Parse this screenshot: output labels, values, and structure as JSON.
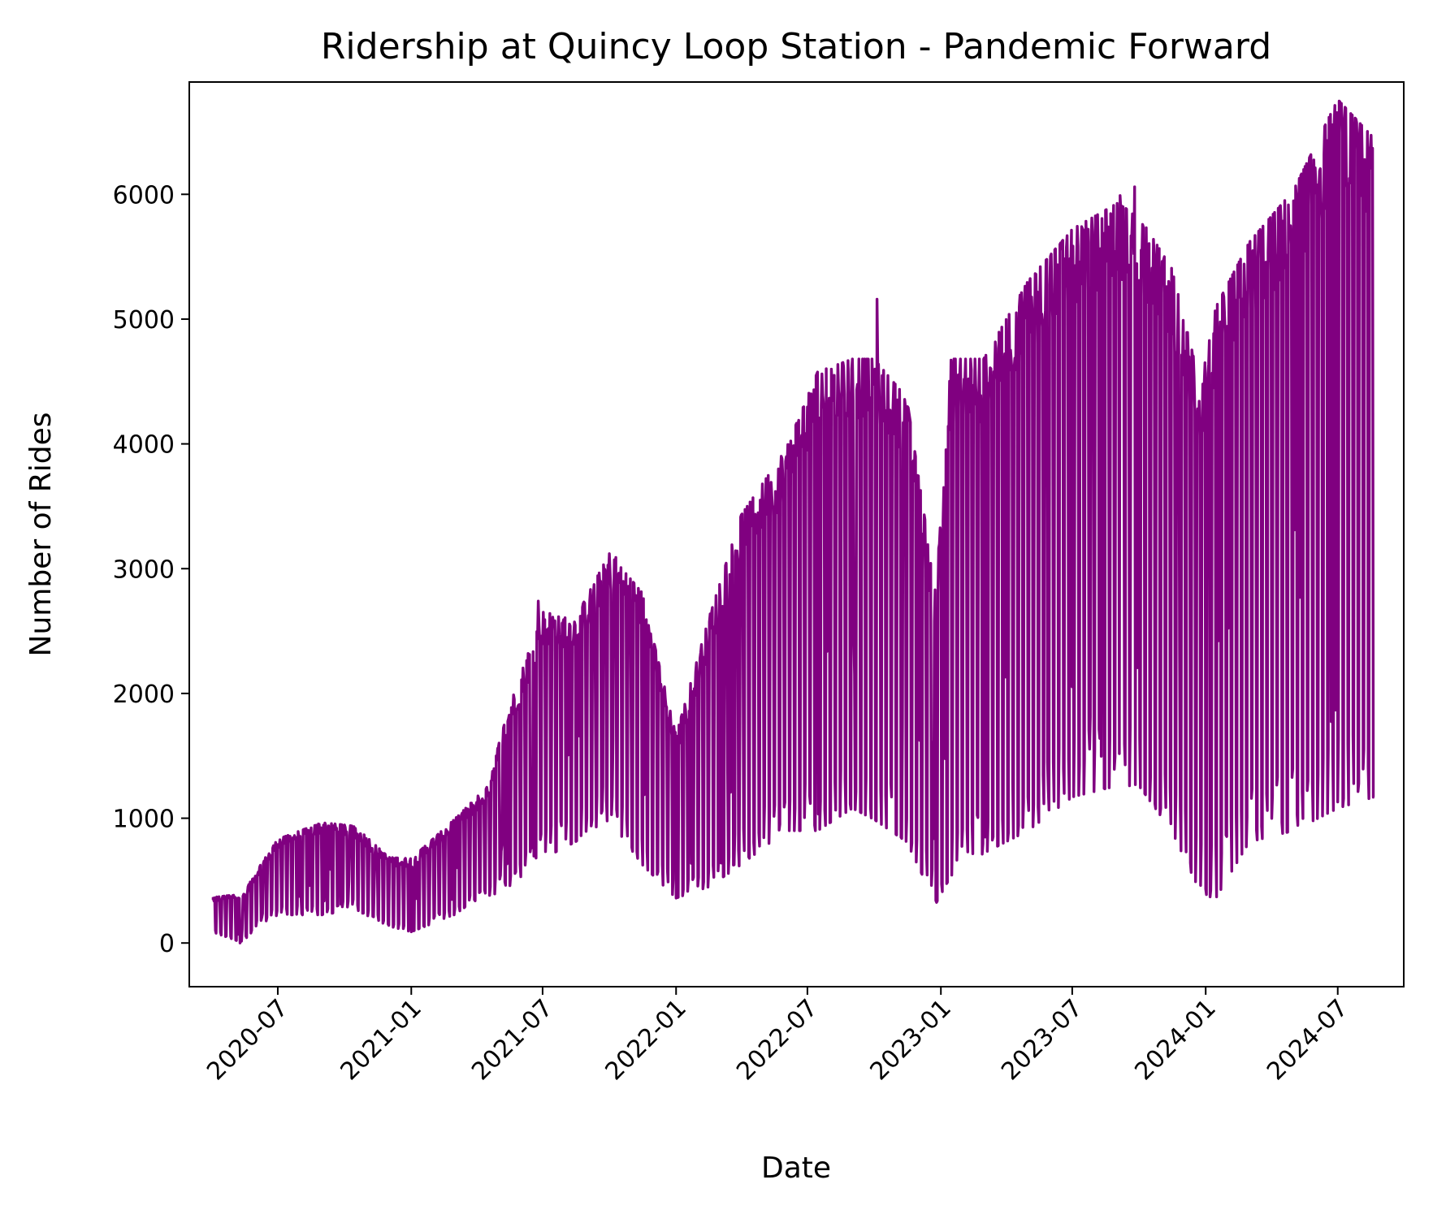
{
  "chart_data": {
    "type": "line",
    "title": "Ridership at Quincy Loop Station - Pandemic Forward",
    "xlabel": "Date",
    "ylabel": "Number of Rides",
    "x_range": [
      "2020-03-01",
      "2024-09-01"
    ],
    "x_domain": [
      "2020-03-01",
      "2024-09-30"
    ],
    "ylim": [
      -350,
      6900
    ],
    "grid": false,
    "legend": "none",
    "line_color": "#800080",
    "x_ticks": [
      {
        "date": "2020-07-01",
        "label": "2020-07"
      },
      {
        "date": "2021-01-01",
        "label": "2021-01"
      },
      {
        "date": "2021-07-01",
        "label": "2021-07"
      },
      {
        "date": "2022-01-01",
        "label": "2022-01"
      },
      {
        "date": "2022-07-01",
        "label": "2022-07"
      },
      {
        "date": "2023-01-01",
        "label": "2023-01"
      },
      {
        "date": "2023-07-01",
        "label": "2023-07"
      },
      {
        "date": "2024-01-01",
        "label": "2024-01"
      },
      {
        "date": "2024-07-01",
        "label": "2024-07"
      }
    ],
    "y_ticks": [
      {
        "value": 0,
        "label": "0"
      },
      {
        "value": 1000,
        "label": "1000"
      },
      {
        "value": 2000,
        "label": "2000"
      },
      {
        "value": 3000,
        "label": "3000"
      },
      {
        "value": 4000,
        "label": "4000"
      },
      {
        "value": 5000,
        "label": "5000"
      },
      {
        "value": 6000,
        "label": "6000"
      }
    ],
    "series": [
      {
        "daily_range_envelope": [
          {
            "date": "2020-04-01",
            "low": 100,
            "high": 350
          },
          {
            "date": "2020-05-15",
            "low": 0,
            "high": 380
          },
          {
            "date": "2020-06-01",
            "low": 150,
            "high": 550
          },
          {
            "date": "2020-07-01",
            "low": 250,
            "high": 800
          },
          {
            "date": "2020-09-01",
            "low": 250,
            "high": 930
          },
          {
            "date": "2020-10-15",
            "low": 300,
            "high": 900
          },
          {
            "date": "2020-12-01",
            "low": 150,
            "high": 660
          },
          {
            "date": "2021-01-01",
            "low": 100,
            "high": 650
          },
          {
            "date": "2021-03-01",
            "low": 250,
            "high": 950
          },
          {
            "date": "2021-04-15",
            "low": 400,
            "high": 1200
          },
          {
            "date": "2021-05-15",
            "low": 500,
            "high": 1800
          },
          {
            "date": "2021-07-01",
            "low": 750,
            "high": 2550
          },
          {
            "date": "2021-08-15",
            "low": 900,
            "high": 2500
          },
          {
            "date": "2021-10-01",
            "low": 1100,
            "high": 3000
          },
          {
            "date": "2021-11-15",
            "low": 700,
            "high": 2700
          },
          {
            "date": "2022-01-01",
            "low": 400,
            "high": 1600
          },
          {
            "date": "2022-02-15",
            "low": 500,
            "high": 2500
          },
          {
            "date": "2022-04-01",
            "low": 700,
            "high": 3300
          },
          {
            "date": "2022-06-01",
            "low": 1000,
            "high": 3800
          },
          {
            "date": "2022-07-15",
            "low": 1000,
            "high": 4400
          },
          {
            "date": "2022-09-01",
            "low": 1200,
            "high": 4500
          },
          {
            "date": "2022-10-01",
            "low": 1100,
            "high": 4500
          },
          {
            "date": "2022-11-15",
            "low": 900,
            "high": 4200
          },
          {
            "date": "2022-12-25",
            "low": 350,
            "high": 2700
          },
          {
            "date": "2023-01-15",
            "low": 600,
            "high": 4500
          },
          {
            "date": "2023-03-01",
            "low": 800,
            "high": 4500
          },
          {
            "date": "2023-05-01",
            "low": 1000,
            "high": 5100
          },
          {
            "date": "2023-07-01",
            "low": 1300,
            "high": 5500
          },
          {
            "date": "2023-09-01",
            "low": 1400,
            "high": 5700
          },
          {
            "date": "2023-10-01",
            "low": 1400,
            "high": 5600
          },
          {
            "date": "2023-11-15",
            "low": 1000,
            "high": 5200
          },
          {
            "date": "2023-12-25",
            "low": 450,
            "high": 4300
          },
          {
            "date": "2024-01-15",
            "low": 400,
            "high": 4900
          },
          {
            "date": "2024-03-01",
            "low": 900,
            "high": 5400
          },
          {
            "date": "2024-05-01",
            "low": 1000,
            "high": 5800
          },
          {
            "date": "2024-07-01",
            "low": 1200,
            "high": 6500
          },
          {
            "date": "2024-08-20",
            "low": 1300,
            "high": 6200
          }
        ],
        "notable_peaks": [
          {
            "date": "2021-06-25",
            "value": 2740
          },
          {
            "date": "2021-10-10",
            "value": 3090
          },
          {
            "date": "2022-10-05",
            "value": 5160
          },
          {
            "date": "2023-09-05",
            "value": 5990
          },
          {
            "date": "2023-09-25",
            "value": 6060
          },
          {
            "date": "2024-07-10",
            "value": 6580
          }
        ],
        "notable_troughs": [
          {
            "date": "2020-05-10",
            "value": 0
          },
          {
            "date": "2021-01-01",
            "value": 90
          },
          {
            "date": "2022-01-01",
            "value": 360
          },
          {
            "date": "2022-12-25",
            "value": 340
          },
          {
            "date": "2024-01-07",
            "value": 370
          }
        ]
      }
    ]
  }
}
